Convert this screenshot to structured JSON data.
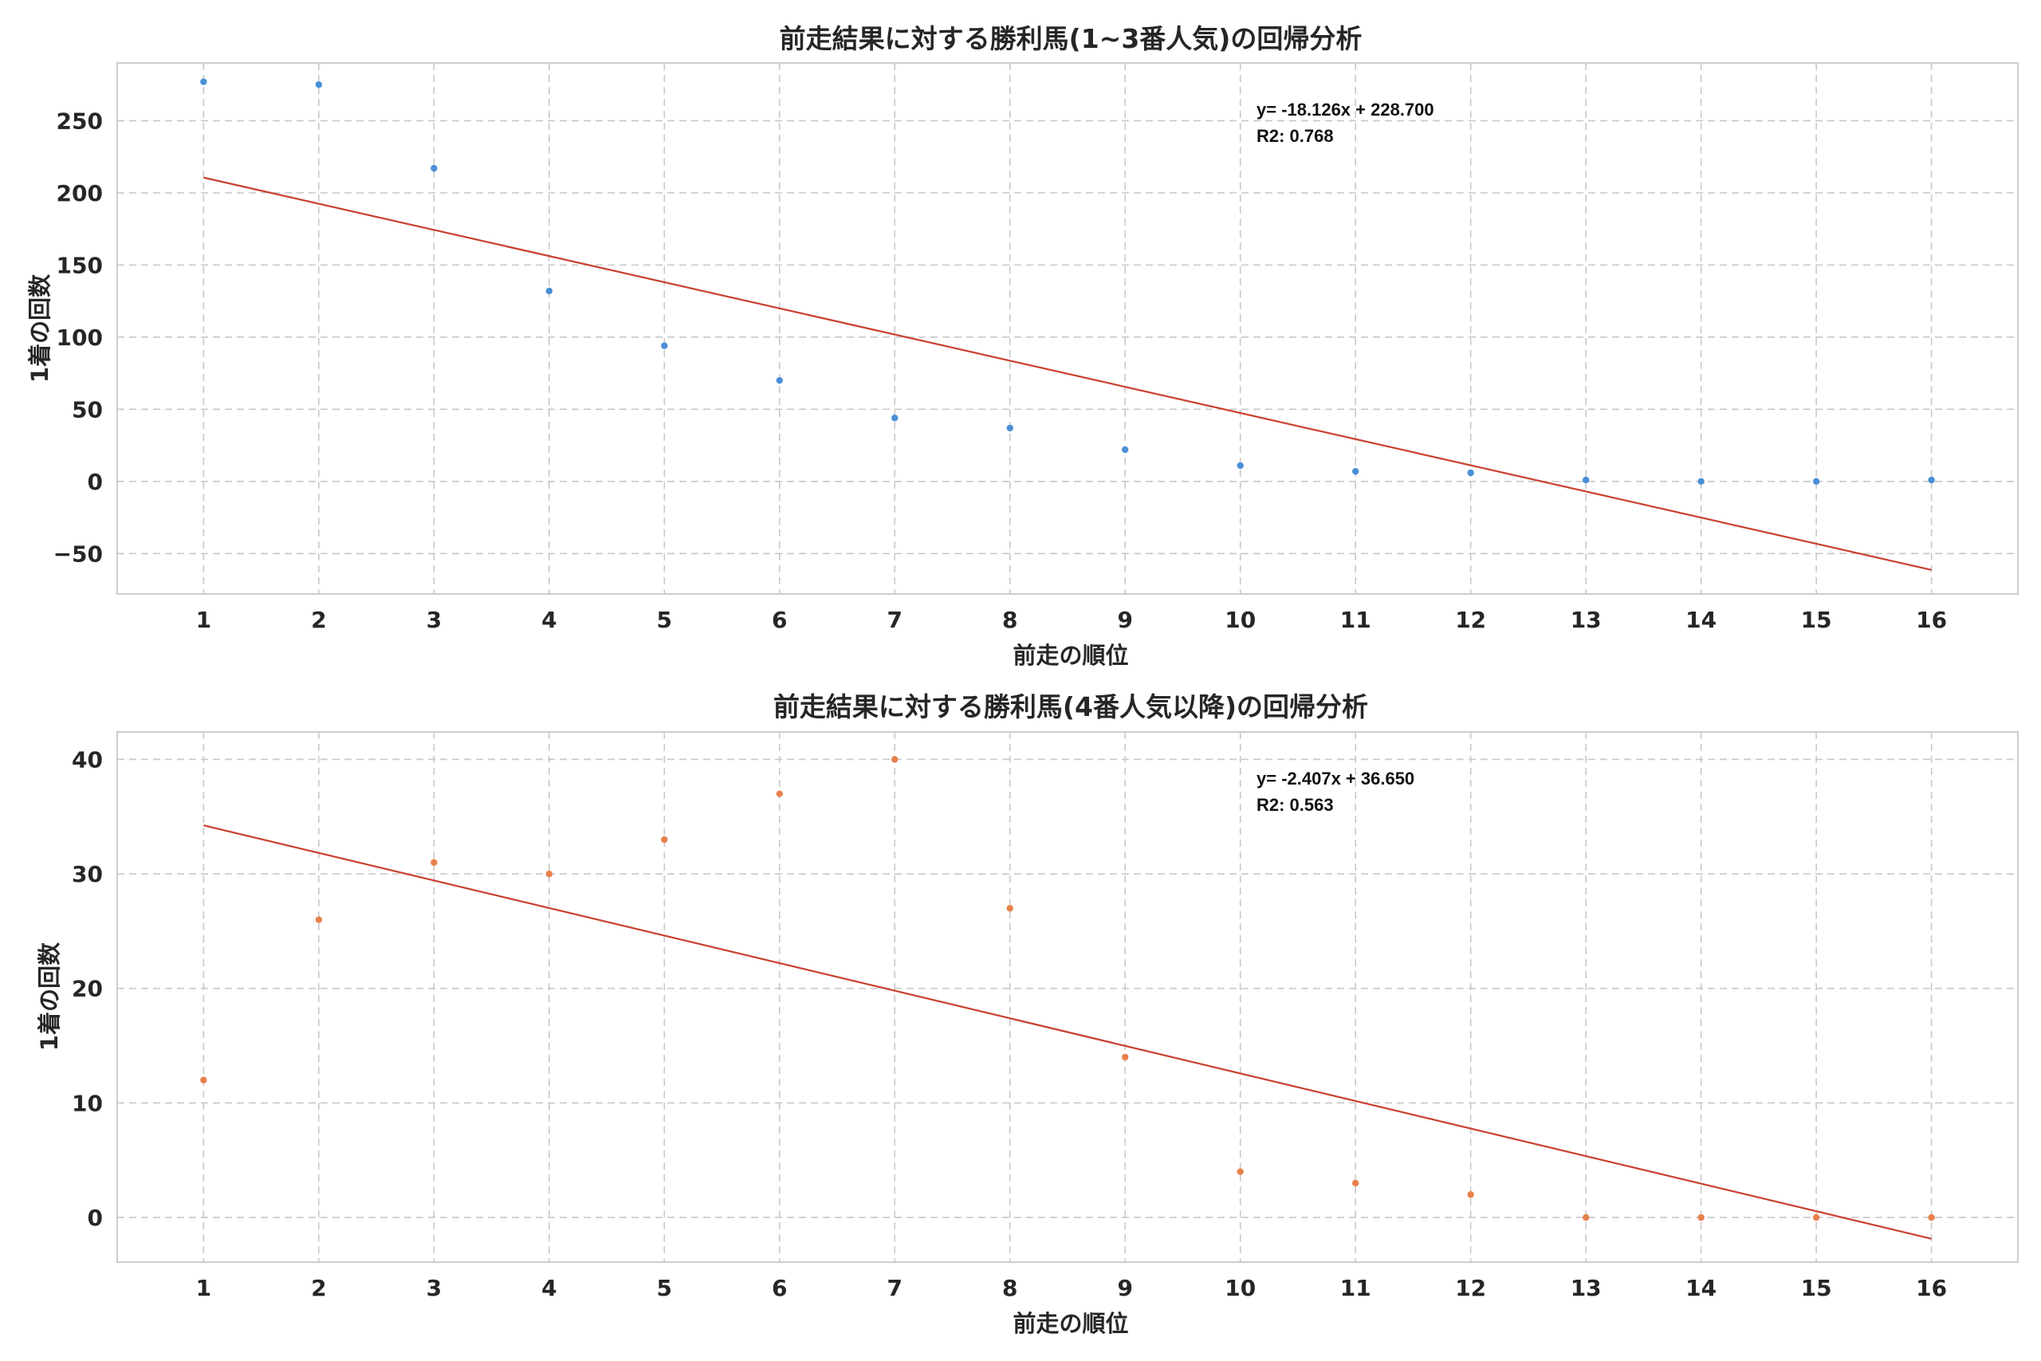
{
  "chart_data": [
    {
      "type": "scatter",
      "title": "前走結果に対する勝利馬(1~3番人気)の回帰分析",
      "xlabel": "前走の順位",
      "ylabel": "1着の回数",
      "x": [
        1,
        2,
        3,
        4,
        5,
        6,
        7,
        8,
        9,
        10,
        11,
        12,
        13,
        14,
        15,
        16
      ],
      "y": [
        277,
        275,
        217,
        132,
        94,
        70,
        44,
        37,
        22,
        11,
        7,
        6,
        1,
        0,
        0,
        1
      ],
      "xlim": [
        0.25,
        16.75
      ],
      "ylim": [
        -78,
        290
      ],
      "xticks": [
        1,
        2,
        3,
        4,
        5,
        6,
        7,
        8,
        9,
        10,
        11,
        12,
        13,
        14,
        15,
        16
      ],
      "yticks": [
        -50,
        0,
        50,
        100,
        150,
        200,
        250
      ],
      "grid": true,
      "colors": {
        "points": "#4a8fd6",
        "fit": "#c9402e"
      },
      "fit": {
        "slope": -18.126,
        "intercept": 228.7
      },
      "annotation": {
        "equation": "y= -18.126x + 228.700",
        "r2": "R2: 0.768"
      }
    },
    {
      "type": "scatter",
      "title": "前走結果に対する勝利馬(4番人気以降)の回帰分析",
      "xlabel": "前走の順位",
      "ylabel": "1着の回数",
      "x": [
        1,
        2,
        3,
        4,
        5,
        6,
        7,
        8,
        9,
        10,
        11,
        12,
        13,
        14,
        15,
        16
      ],
      "y": [
        12,
        26,
        31,
        30,
        33,
        37,
        40,
        27,
        14,
        4,
        3,
        2,
        0,
        0,
        0,
        0
      ],
      "xlim": [
        0.25,
        16.75
      ],
      "ylim": [
        -3.9,
        42.4
      ],
      "xticks": [
        1,
        2,
        3,
        4,
        5,
        6,
        7,
        8,
        9,
        10,
        11,
        12,
        13,
        14,
        15,
        16
      ],
      "yticks": [
        0,
        10,
        20,
        30,
        40
      ],
      "grid": true,
      "colors": {
        "points": "#e8804c",
        "fit": "#c9402e"
      },
      "fit": {
        "slope": -2.407,
        "intercept": 36.65
      },
      "annotation": {
        "equation": "y= -2.407x + 36.650",
        "r2": "R2: 0.563"
      }
    }
  ]
}
